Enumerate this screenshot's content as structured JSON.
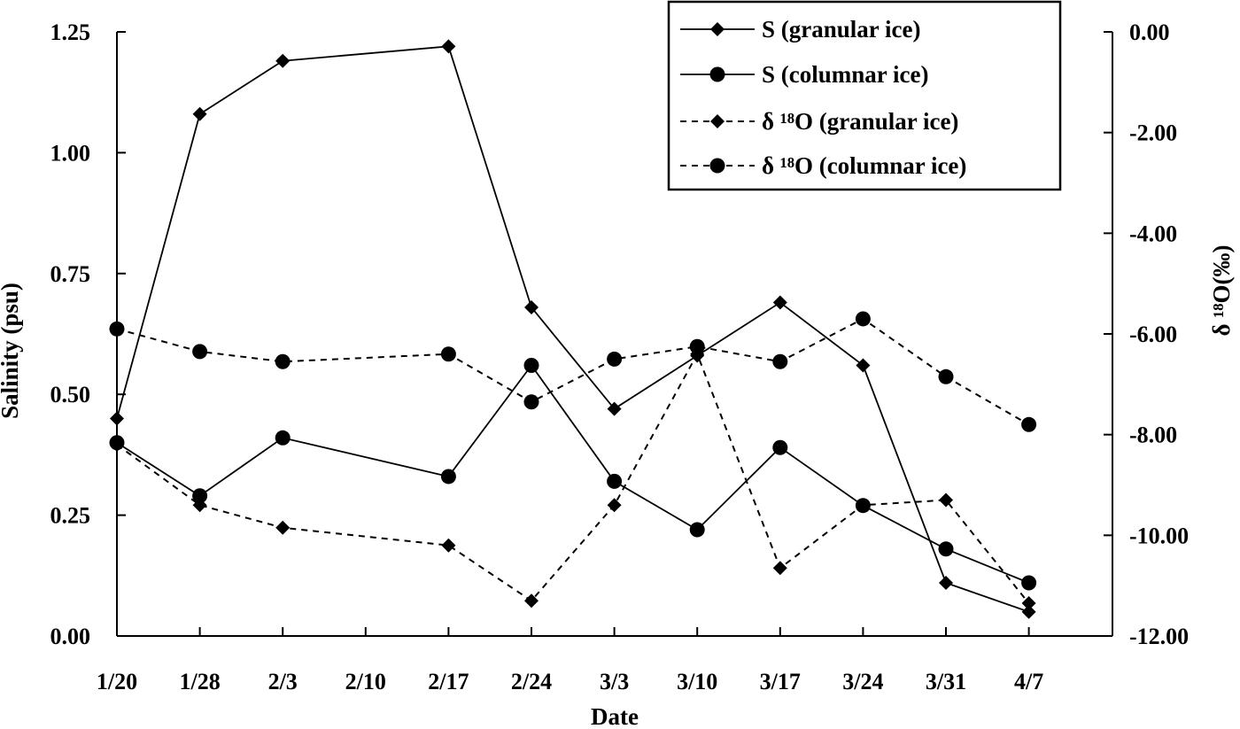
{
  "chart_data": {
    "type": "line",
    "title": "",
    "xlabel": "Date",
    "ylabel_left": "Salinity (psu)",
    "ylabel_right": "δ ¹⁸O(‰)",
    "x_categories": [
      "1/20",
      "1/28",
      "2/3",
      "2/10",
      "2/17",
      "2/24",
      "3/3",
      "3/10",
      "3/17",
      "3/24",
      "3/31",
      "4/7"
    ],
    "ylim_left": [
      0,
      1.25
    ],
    "yticks_left": [
      "0.00",
      "0.25",
      "0.50",
      "0.75",
      "1.00",
      "1.25"
    ],
    "ylim_right": [
      -12,
      0
    ],
    "yticks_right": [
      "-12.00",
      "-10.00",
      "-8.00",
      "-6.00",
      "-4.00",
      "-2.00",
      "0.00"
    ],
    "grid": false,
    "legend_position": "top-right",
    "series": [
      {
        "name": "S (granular ice)",
        "axis": "left",
        "marker": "diamond",
        "dash": "solid",
        "points": [
          [
            "1/20",
            0.45
          ],
          [
            "1/28",
            1.08
          ],
          [
            "2/3",
            1.19
          ],
          [
            "2/17",
            1.22
          ],
          [
            "2/24",
            0.68
          ],
          [
            "3/3",
            0.47
          ],
          [
            "3/10",
            0.58
          ],
          [
            "3/17",
            0.69
          ],
          [
            "3/24",
            0.56
          ],
          [
            "3/31",
            0.11
          ],
          [
            "4/7",
            0.05
          ]
        ]
      },
      {
        "name": "S (columnar ice)",
        "axis": "left",
        "marker": "circle",
        "dash": "solid",
        "points": [
          [
            "1/20",
            0.4
          ],
          [
            "1/28",
            0.29
          ],
          [
            "2/3",
            0.41
          ],
          [
            "2/17",
            0.33
          ],
          [
            "2/24",
            0.56
          ],
          [
            "3/3",
            0.32
          ],
          [
            "3/10",
            0.22
          ],
          [
            "3/17",
            0.39
          ],
          [
            "3/24",
            0.27
          ],
          [
            "3/31",
            0.18
          ],
          [
            "4/7",
            0.11
          ]
        ]
      },
      {
        "name": "δ ¹⁸O (granular ice)",
        "axis": "right",
        "marker": "diamond",
        "dash": "dashed",
        "points": [
          [
            "1/20",
            -8.2
          ],
          [
            "1/28",
            -9.4
          ],
          [
            "2/3",
            -9.85
          ],
          [
            "2/17",
            -10.2
          ],
          [
            "2/24",
            -11.3
          ],
          [
            "3/3",
            -9.4
          ],
          [
            "3/10",
            -6.4
          ],
          [
            "3/17",
            -10.65
          ],
          [
            "3/24",
            -9.4
          ],
          [
            "3/31",
            -9.3
          ],
          [
            "4/7",
            -11.35
          ]
        ]
      },
      {
        "name": "δ ¹⁸O (columnar ice)",
        "axis": "right",
        "marker": "circle",
        "dash": "dashed",
        "points": [
          [
            "1/20",
            -5.9
          ],
          [
            "1/28",
            -6.35
          ],
          [
            "2/3",
            -6.55
          ],
          [
            "2/17",
            -6.4
          ],
          [
            "2/24",
            -7.35
          ],
          [
            "3/3",
            -6.5
          ],
          [
            "3/10",
            -6.25
          ],
          [
            "3/17",
            -6.55
          ],
          [
            "3/24",
            -5.7
          ],
          [
            "3/31",
            -6.85
          ],
          [
            "4/7",
            -7.8
          ]
        ]
      }
    ]
  }
}
